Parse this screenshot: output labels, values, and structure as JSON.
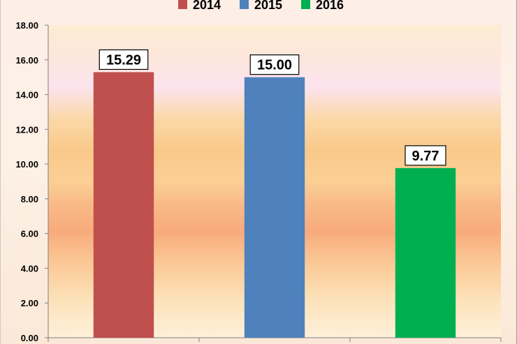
{
  "chart_data": {
    "type": "bar",
    "categories": [
      "2014",
      "2015",
      "2016"
    ],
    "values": [
      15.29,
      15.0,
      9.77
    ],
    "data_labels": [
      "15.29",
      "15.00",
      "9.77"
    ],
    "colors": [
      "#c0504d",
      "#4f81bd",
      "#00b050"
    ],
    "legend": {
      "placement": "top-center",
      "entries": [
        {
          "label": "2014",
          "color": "#c0504d"
        },
        {
          "label": "2015",
          "color": "#4f81bd"
        },
        {
          "label": "2016",
          "color": "#00b050"
        }
      ]
    },
    "ylim": [
      0,
      18
    ],
    "yticks": [
      0,
      2,
      4,
      6,
      8,
      10,
      12,
      14,
      16,
      18
    ],
    "ytick_labels": [
      "0.00",
      "2.00",
      "4.00",
      "6.00",
      "8.00",
      "10.00",
      "12.00",
      "14.00",
      "16.00",
      "18.00"
    ],
    "grid": false,
    "title": "",
    "xlabel": "",
    "ylabel": ""
  }
}
